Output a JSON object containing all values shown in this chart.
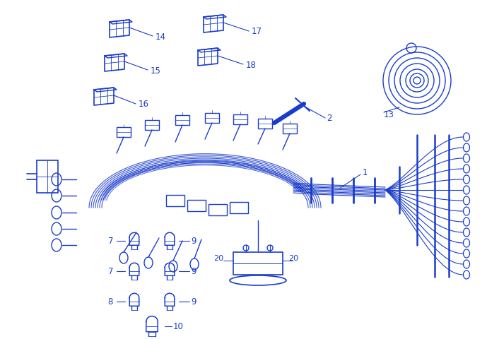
{
  "bg_color": "#ffffff",
  "line_color": "#1a3ccc",
  "fig_width": 6.89,
  "fig_height": 4.81,
  "dpi": 100
}
